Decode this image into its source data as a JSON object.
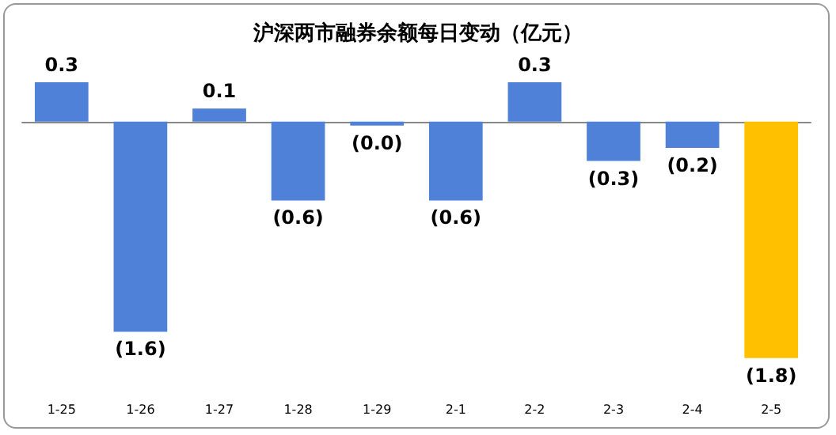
{
  "chart_data": {
    "type": "bar",
    "title": "沪深两市融券余额每日变动（亿元）",
    "categories": [
      "1-25",
      "1-26",
      "1-27",
      "1-28",
      "1-29",
      "2-1",
      "2-2",
      "2-3",
      "2-4",
      "2-5"
    ],
    "values": [
      0.3,
      -1.6,
      0.1,
      -0.6,
      -0.03,
      -0.6,
      0.3,
      -0.3,
      -0.2,
      -1.8
    ],
    "value_labels": [
      "0.3",
      "(1.6)",
      "0.1",
      "(0.6)",
      "(0.0)",
      "(0.6)",
      "0.3",
      "(0.3)",
      "(0.2)",
      "(1.8)"
    ],
    "colors": [
      "#4f81d9",
      "#4f81d9",
      "#4f81d9",
      "#4f81d9",
      "#4f81d9",
      "#4f81d9",
      "#4f81d9",
      "#4f81d9",
      "#4f81d9",
      "#ffc000"
    ],
    "grid": false
  }
}
